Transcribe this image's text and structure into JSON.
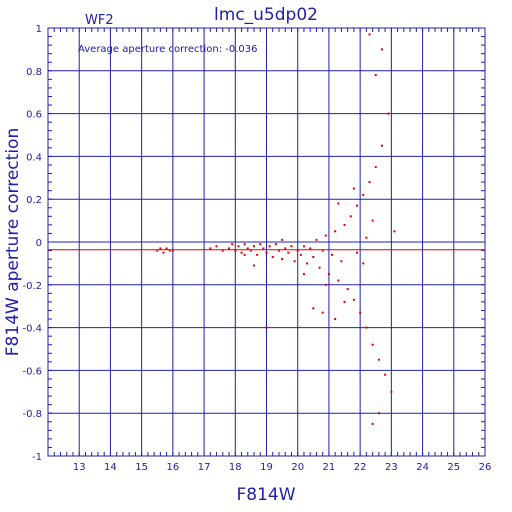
{
  "chart_data": {
    "type": "scatter",
    "title": "lmc_u5dp02",
    "panel_label": "WF2",
    "annotation": "Average aperture correction: -0.036",
    "xlabel": "F814W",
    "ylabel": "F814W aperture correction",
    "xlim": [
      12,
      26
    ],
    "ylim": [
      -1,
      1
    ],
    "xticks": [
      "13",
      "14",
      "15",
      "16",
      "17",
      "18",
      "19",
      "20",
      "21",
      "22",
      "23",
      "24",
      "25",
      "26"
    ],
    "yticks": [
      "-1",
      "-0.8",
      "-0.6",
      "-0.4",
      "-0.2",
      "0",
      "0.2",
      "0.4",
      "0.6",
      "0.8",
      "1"
    ],
    "grid": true,
    "average_line": -0.036,
    "colors": {
      "axes": "#2020a8",
      "points": "#e00000",
      "average_line": "#e00000"
    },
    "series": [
      {
        "points": [
          [
            15.5,
            -0.04
          ],
          [
            15.6,
            -0.03
          ],
          [
            15.7,
            -0.05
          ],
          [
            15.8,
            -0.03
          ],
          [
            15.9,
            -0.04
          ],
          [
            16.0,
            -0.04
          ],
          [
            17.2,
            -0.03
          ],
          [
            17.4,
            -0.02
          ],
          [
            17.6,
            -0.04
          ],
          [
            17.8,
            -0.03
          ],
          [
            17.9,
            -0.01
          ],
          [
            18.0,
            -0.04
          ],
          [
            18.1,
            -0.02
          ],
          [
            18.2,
            -0.05
          ],
          [
            18.3,
            -0.01
          ],
          [
            18.4,
            -0.03
          ],
          [
            18.5,
            -0.04
          ],
          [
            18.6,
            -0.02
          ],
          [
            18.7,
            -0.06
          ],
          [
            18.8,
            -0.01
          ],
          [
            18.9,
            -0.03
          ],
          [
            19.0,
            -0.05
          ],
          [
            19.1,
            -0.02
          ],
          [
            19.2,
            -0.07
          ],
          [
            19.3,
            -0.01
          ],
          [
            19.4,
            -0.04
          ],
          [
            19.5,
            -0.08
          ],
          [
            19.6,
            -0.03
          ],
          [
            19.7,
            -0.05
          ],
          [
            19.8,
            -0.02
          ],
          [
            19.9,
            -0.09
          ],
          [
            20.0,
            -0.04
          ],
          [
            20.1,
            -0.06
          ],
          [
            20.2,
            -0.02
          ],
          [
            20.3,
            -0.1
          ],
          [
            20.4,
            -0.03
          ],
          [
            20.5,
            -0.07
          ],
          [
            20.6,
            0.01
          ],
          [
            20.7,
            -0.12
          ],
          [
            20.8,
            -0.04
          ],
          [
            20.9,
            0.03
          ],
          [
            21.0,
            -0.15
          ],
          [
            21.1,
            -0.06
          ],
          [
            21.2,
            0.05
          ],
          [
            21.3,
            -0.18
          ],
          [
            21.4,
            -0.09
          ],
          [
            21.5,
            0.08
          ],
          [
            21.6,
            -0.22
          ],
          [
            21.7,
            0.12
          ],
          [
            21.8,
            -0.27
          ],
          [
            21.9,
            0.17
          ],
          [
            22.0,
            -0.33
          ],
          [
            22.1,
            0.22
          ],
          [
            22.2,
            -0.4
          ],
          [
            22.3,
            0.28
          ],
          [
            22.4,
            -0.48
          ],
          [
            22.5,
            0.35
          ],
          [
            22.6,
            -0.55
          ],
          [
            22.7,
            0.45
          ],
          [
            22.8,
            -0.62
          ],
          [
            22.9,
            0.6
          ],
          [
            23.0,
            -0.7
          ],
          [
            22.5,
            0.78
          ],
          [
            22.7,
            0.9
          ],
          [
            22.3,
            0.97
          ],
          [
            22.6,
            -0.8
          ],
          [
            22.4,
            -0.85
          ],
          [
            18.3,
            -0.06
          ],
          [
            19.0,
            -0.4
          ],
          [
            20.5,
            -0.31
          ],
          [
            20.8,
            -0.33
          ],
          [
            21.2,
            -0.36
          ],
          [
            21.5,
            -0.28
          ],
          [
            21.8,
            0.25
          ],
          [
            22.1,
            -0.1
          ],
          [
            22.2,
            0.02
          ],
          [
            23.1,
            0.05
          ],
          [
            19.5,
            0.01
          ],
          [
            18.6,
            -0.11
          ],
          [
            20.2,
            -0.15
          ],
          [
            20.9,
            -0.2
          ],
          [
            21.3,
            0.18
          ],
          [
            21.9,
            -0.05
          ],
          [
            22.4,
            0.1
          ]
        ]
      }
    ]
  }
}
